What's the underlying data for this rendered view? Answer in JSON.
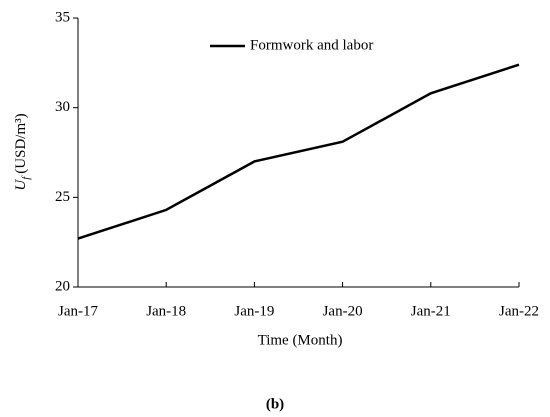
{
  "chart_data": {
    "type": "line",
    "y_label": {
      "symbol": "U",
      "subscript": "f",
      "unit": "(USD/m³)"
    },
    "x_label": "Time (Month)",
    "caption": "(b)",
    "categories": [
      "Jan-17",
      "Jan-18",
      "Jan-19",
      "Jan-20",
      "Jan-21",
      "Jan-22"
    ],
    "series": [
      {
        "name": "Formwork and labor",
        "color": "#000000",
        "values": [
          22.7,
          24.3,
          27.0,
          28.1,
          30.8,
          32.4
        ]
      }
    ],
    "ylim": [
      20,
      35
    ],
    "yticks": [
      20,
      25,
      30,
      35
    ],
    "grid": false,
    "legend": "top"
  }
}
